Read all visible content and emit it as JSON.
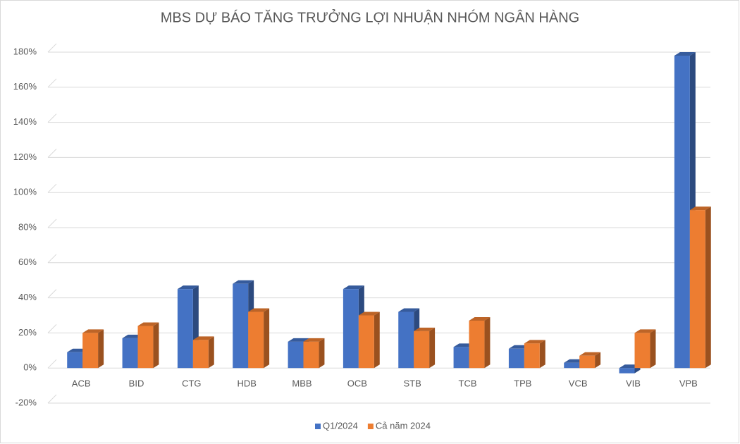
{
  "chart_data": {
    "type": "bar3d",
    "title": "MBS DỰ BÁO TĂNG TRƯỞNG LỢI NHUẬN NHÓM NGÂN HÀNG",
    "categories": [
      "ACB",
      "BID",
      "CTG",
      "HDB",
      "MBB",
      "OCB",
      "STB",
      "TCB",
      "TPB",
      "VCB",
      "VIB",
      "VPB"
    ],
    "series": [
      {
        "name": "Q1/2024",
        "color": "#4472c4",
        "values": [
          9,
          17,
          45,
          48,
          15,
          45,
          32,
          12,
          11,
          3,
          -3,
          178
        ]
      },
      {
        "name": "Cả năm 2024",
        "color": "#ed7d31",
        "values": [
          20,
          24,
          16,
          32,
          15,
          30,
          21,
          27,
          14,
          7,
          20,
          90
        ]
      }
    ],
    "ylim": [
      -20,
      180
    ],
    "yticks": [
      {
        "value": -20,
        "label": "-20%"
      },
      {
        "value": 0,
        "label": "0%"
      },
      {
        "value": 20,
        "label": "20%"
      },
      {
        "value": 40,
        "label": "40%"
      },
      {
        "value": 60,
        "label": "60%"
      },
      {
        "value": 80,
        "label": "80%"
      },
      {
        "value": 100,
        "label": "100%"
      },
      {
        "value": 120,
        "label": "120%"
      },
      {
        "value": 140,
        "label": "140%"
      },
      {
        "value": 160,
        "label": "160%"
      },
      {
        "value": 180,
        "label": "180%"
      }
    ],
    "grid": true,
    "legend": "bottom"
  }
}
